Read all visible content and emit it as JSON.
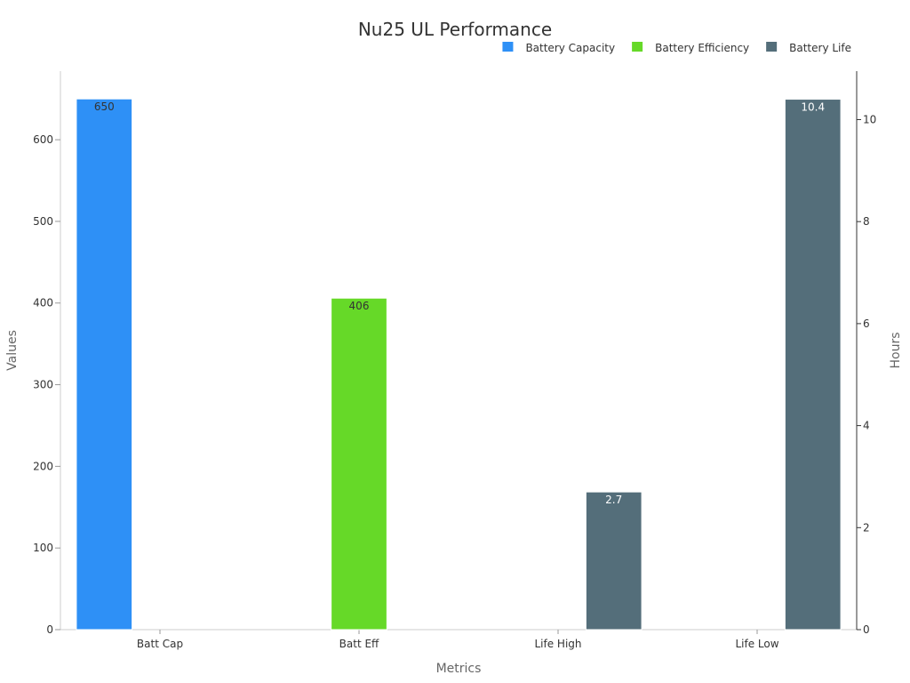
{
  "chart_data": {
    "type": "bar",
    "title": "Nu25 UL Performance",
    "categories": [
      "Batt Cap",
      "Batt Eff",
      "Life High",
      "Life Low"
    ],
    "xlabel": "Metrics",
    "ylabel": "Values",
    "y2label": "Hours",
    "ylim": [
      0,
      684
    ],
    "y2lim": [
      0,
      10.95
    ],
    "yticks": [
      0,
      100,
      200,
      300,
      400,
      500,
      600
    ],
    "y2ticks": [
      0,
      2,
      4,
      6,
      8,
      10
    ],
    "legend_position": "top-right",
    "grid": false,
    "series": [
      {
        "name": "Battery Capacity",
        "axis": "left",
        "color": "#2e90f6",
        "label_color": "#333333",
        "values": [
          650,
          null,
          null,
          null
        ],
        "labels": [
          "650",
          null,
          null,
          null
        ]
      },
      {
        "name": "Battery Efficiency",
        "axis": "left",
        "color": "#66d928",
        "label_color": "#333333",
        "values": [
          null,
          406,
          null,
          null
        ],
        "labels": [
          null,
          "406",
          null,
          null
        ]
      },
      {
        "name": "Battery Life",
        "axis": "right",
        "color": "#546e7a",
        "label_color": "#ffffff",
        "values": [
          null,
          null,
          2.7,
          10.4
        ],
        "labels": [
          null,
          null,
          "2.7",
          "10.4"
        ]
      }
    ]
  }
}
